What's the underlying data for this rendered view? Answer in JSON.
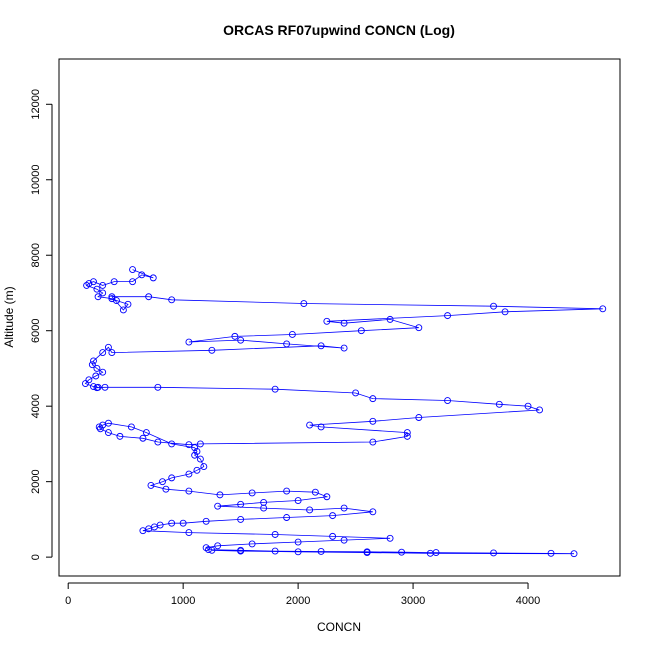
{
  "chart_data": {
    "type": "scatter",
    "title": "ORCAS RF07upwind CONCN (Log)",
    "xlabel": "CONCN",
    "ylabel": "Altitude (m)",
    "xlim": [
      -80,
      4800
    ],
    "ylim": [
      -500,
      13200
    ],
    "x_ticks": [
      0,
      1000,
      2000,
      3000,
      4000
    ],
    "y_ticks": [
      0,
      2000,
      4000,
      6000,
      8000,
      10000,
      12000
    ],
    "grid": false,
    "legend": "none",
    "color": "#0000ff",
    "markers": "open circles connected by lines",
    "series": [
      {
        "x": [
          560,
          740,
          640,
          560,
          400,
          300,
          220,
          180,
          160,
          250,
          300,
          260,
          380,
          420,
          520,
          480,
          380,
          700,
          900,
          2050,
          3700,
          4650,
          3800,
          3300,
          2250,
          2400,
          2800,
          3050,
          2550,
          1950,
          1450,
          1050,
          1500,
          1900,
          2400,
          2200,
          1250,
          380,
          350,
          300,
          220,
          210,
          250,
          300,
          240,
          180,
          150,
          220,
          260,
          250,
          320,
          780,
          1800,
          2500,
          2650,
          3300,
          3750,
          4000,
          4100,
          3050,
          2650,
          2100,
          2200,
          2950,
          2950,
          2650,
          1150,
          1050,
          780,
          650,
          450,
          350,
          280,
          270,
          300,
          350,
          550,
          680,
          900,
          1100,
          1120,
          1100,
          1150,
          1180,
          1120,
          1050,
          900,
          820,
          720,
          850,
          1050,
          1320,
          1600,
          1900,
          2150,
          2250,
          2000,
          1700,
          1500,
          1300,
          1700,
          2100,
          2400,
          2650,
          2300,
          1900,
          1500,
          1200,
          1000,
          900,
          800,
          750,
          700,
          650,
          1050,
          1800,
          2300,
          2800,
          2400,
          2000,
          1600,
          1300,
          1200,
          1220,
          1500,
          1800,
          2200,
          2600,
          2900,
          3200,
          3700,
          4200,
          4400,
          3150,
          2600,
          2000,
          1500,
          1250
        ],
        "y": [
          7620,
          7400,
          7480,
          7300,
          7300,
          7200,
          7300,
          7250,
          7200,
          7100,
          7000,
          6900,
          6850,
          6800,
          6700,
          6550,
          6900,
          6900,
          6820,
          6720,
          6650,
          6580,
          6500,
          6400,
          6250,
          6200,
          6300,
          6080,
          6000,
          5900,
          5850,
          5700,
          5750,
          5650,
          5540,
          5600,
          5480,
          5420,
          5560,
          5420,
          5200,
          5100,
          5000,
          4900,
          4800,
          4700,
          4600,
          4520,
          4500,
          4490,
          4500,
          4500,
          4450,
          4350,
          4200,
          4150,
          4050,
          4000,
          3900,
          3700,
          3600,
          3500,
          3450,
          3300,
          3200,
          3050,
          3000,
          2980,
          3050,
          3150,
          3200,
          3300,
          3400,
          3450,
          3500,
          3550,
          3450,
          3300,
          3000,
          2900,
          2800,
          2700,
          2600,
          2400,
          2300,
          2200,
          2100,
          2000,
          1900,
          1800,
          1750,
          1650,
          1700,
          1750,
          1720,
          1600,
          1500,
          1450,
          1400,
          1350,
          1300,
          1250,
          1300,
          1200,
          1100,
          1050,
          1000,
          950,
          900,
          900,
          850,
          800,
          750,
          700,
          650,
          600,
          550,
          500,
          450,
          400,
          350,
          300,
          250,
          200,
          180,
          160,
          150,
          140,
          130,
          120,
          110,
          100,
          90,
          100,
          120,
          140,
          160,
          180
        ]
      }
    ]
  }
}
